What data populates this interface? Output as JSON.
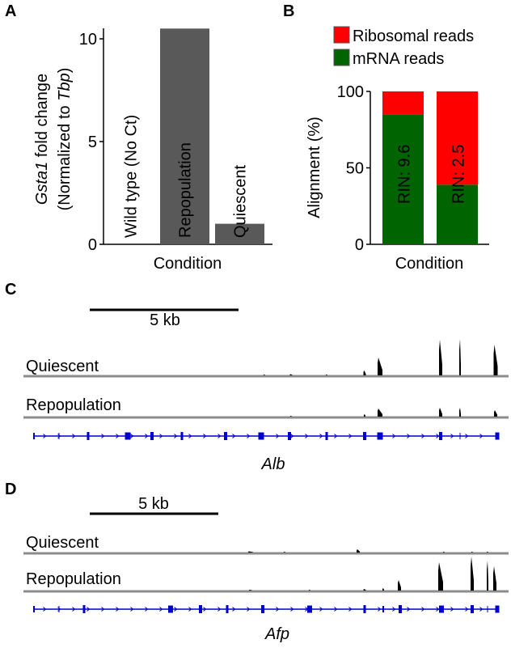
{
  "panels": {
    "a": "A",
    "b": "B",
    "c": "C",
    "d": "D"
  },
  "chart_data": [
    {
      "type": "bar",
      "panel": "A",
      "categories": [
        "Wild type (No Ct)",
        "Repopulation",
        "Quiescent"
      ],
      "values": [
        0,
        10.5,
        1.0
      ],
      "ylabel_gene": "Gsta1",
      "ylabel_rest": " fold change",
      "ylabel2_pre": "(Normalized to ",
      "ylabel2_gene": "Tbp",
      "ylabel2_post": ")",
      "xlabel": "Condition",
      "yticks": [
        "0",
        "5",
        "10"
      ],
      "ylim": [
        0,
        10.5
      ],
      "bar_color": "#595959"
    },
    {
      "type": "bar",
      "stacked": true,
      "panel": "B",
      "categories": [
        "RIN: 9.6",
        "RIN: 2.5"
      ],
      "series": [
        {
          "name": "mRNA reads",
          "values": [
            85,
            39
          ],
          "color": "#006400"
        },
        {
          "name": "Ribosomal reads",
          "values": [
            15,
            61
          ],
          "color": "#ff0000"
        }
      ],
      "legend": [
        "Ribosomal reads",
        "mRNA reads"
      ],
      "legend_position": "top",
      "ylabel": "Alignment (%)",
      "xlabel": "Condition",
      "yticks": [
        "0",
        "50",
        "100"
      ],
      "ylim": [
        0,
        100
      ]
    }
  ],
  "tracks": [
    {
      "panel": "C",
      "scale_label": "5 kb",
      "rows": [
        "Quiescent",
        "Repopulation"
      ],
      "gene": "Alb",
      "gene_color": "#0000cc",
      "coverage_color": "#000000"
    },
    {
      "panel": "D",
      "scale_label": "5 kb",
      "rows": [
        "Quiescent",
        "Repopulation"
      ],
      "gene": "Afp",
      "gene_color": "#0000cc",
      "coverage_color": "#000000"
    }
  ]
}
